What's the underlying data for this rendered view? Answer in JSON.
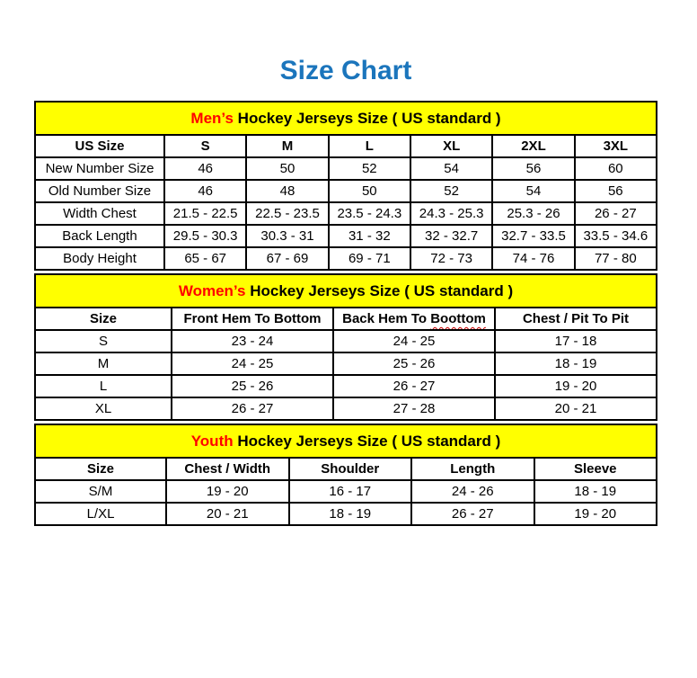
{
  "page": {
    "title": "Size Chart"
  },
  "colors": {
    "title_blue": "#1b75bc",
    "accent_red": "#ff0000",
    "band_yellow": "#ffff00",
    "border_black": "#000000"
  },
  "chart_data": [
    {
      "type": "table",
      "header_accent": "Men’s",
      "header_rest": " Hockey Jerseys Size ( US standard )",
      "columns": [
        "US Size",
        "S",
        "M",
        "L",
        "XL",
        "2XL",
        "3XL"
      ],
      "rows": [
        {
          "label": "New Number Size",
          "values": [
            "46",
            "50",
            "52",
            "54",
            "56",
            "60"
          ]
        },
        {
          "label": "Old Number Size",
          "values": [
            "46",
            "48",
            "50",
            "52",
            "54",
            "56"
          ]
        },
        {
          "label": "Width Chest",
          "values": [
            "21.5 - 22.5",
            "22.5 - 23.5",
            "23.5 - 24.3",
            "24.3 - 25.3",
            "25.3 - 26",
            "26 - 27"
          ]
        },
        {
          "label": "Back Length",
          "values": [
            "29.5 - 30.3",
            "30.3 - 31",
            "31 - 32",
            "32 - 32.7",
            "32.7 - 33.5",
            "33.5 - 34.6"
          ]
        },
        {
          "label": "Body Height",
          "values": [
            "65 - 67",
            "67 - 69",
            "69 - 71",
            "72 - 73",
            "74 - 76",
            "77 - 80"
          ]
        }
      ]
    },
    {
      "type": "table",
      "header_accent": "Women’s",
      "header_rest": " Hockey Jerseys Size ( US standard )",
      "columns": [
        "Size",
        "Front Hem To Bottom",
        "Back Hem To Boottom",
        "Chest / Pit To Pit"
      ],
      "misspelled_word": "Boottom",
      "rows": [
        {
          "label": "S",
          "values": [
            "23 - 24",
            "24 - 25",
            "17 - 18"
          ]
        },
        {
          "label": "M",
          "values": [
            "24 - 25",
            "25 - 26",
            "18 - 19"
          ]
        },
        {
          "label": "L",
          "values": [
            "25 - 26",
            "26 - 27",
            "19 - 20"
          ]
        },
        {
          "label": "XL",
          "values": [
            "26 - 27",
            "27 - 28",
            "20 - 21"
          ]
        }
      ]
    },
    {
      "type": "table",
      "header_accent": "Youth",
      "header_rest": " Hockey Jerseys Size ( US standard )",
      "columns": [
        "Size",
        "Chest / Width",
        "Shoulder",
        "Length",
        "Sleeve"
      ],
      "rows": [
        {
          "label": "S/M",
          "values": [
            "19 - 20",
            "16 - 17",
            "24 - 26",
            "18 - 19"
          ]
        },
        {
          "label": "L/XL",
          "values": [
            "20 - 21",
            "18 - 19",
            "26 - 27",
            "19 - 20"
          ]
        }
      ]
    }
  ]
}
